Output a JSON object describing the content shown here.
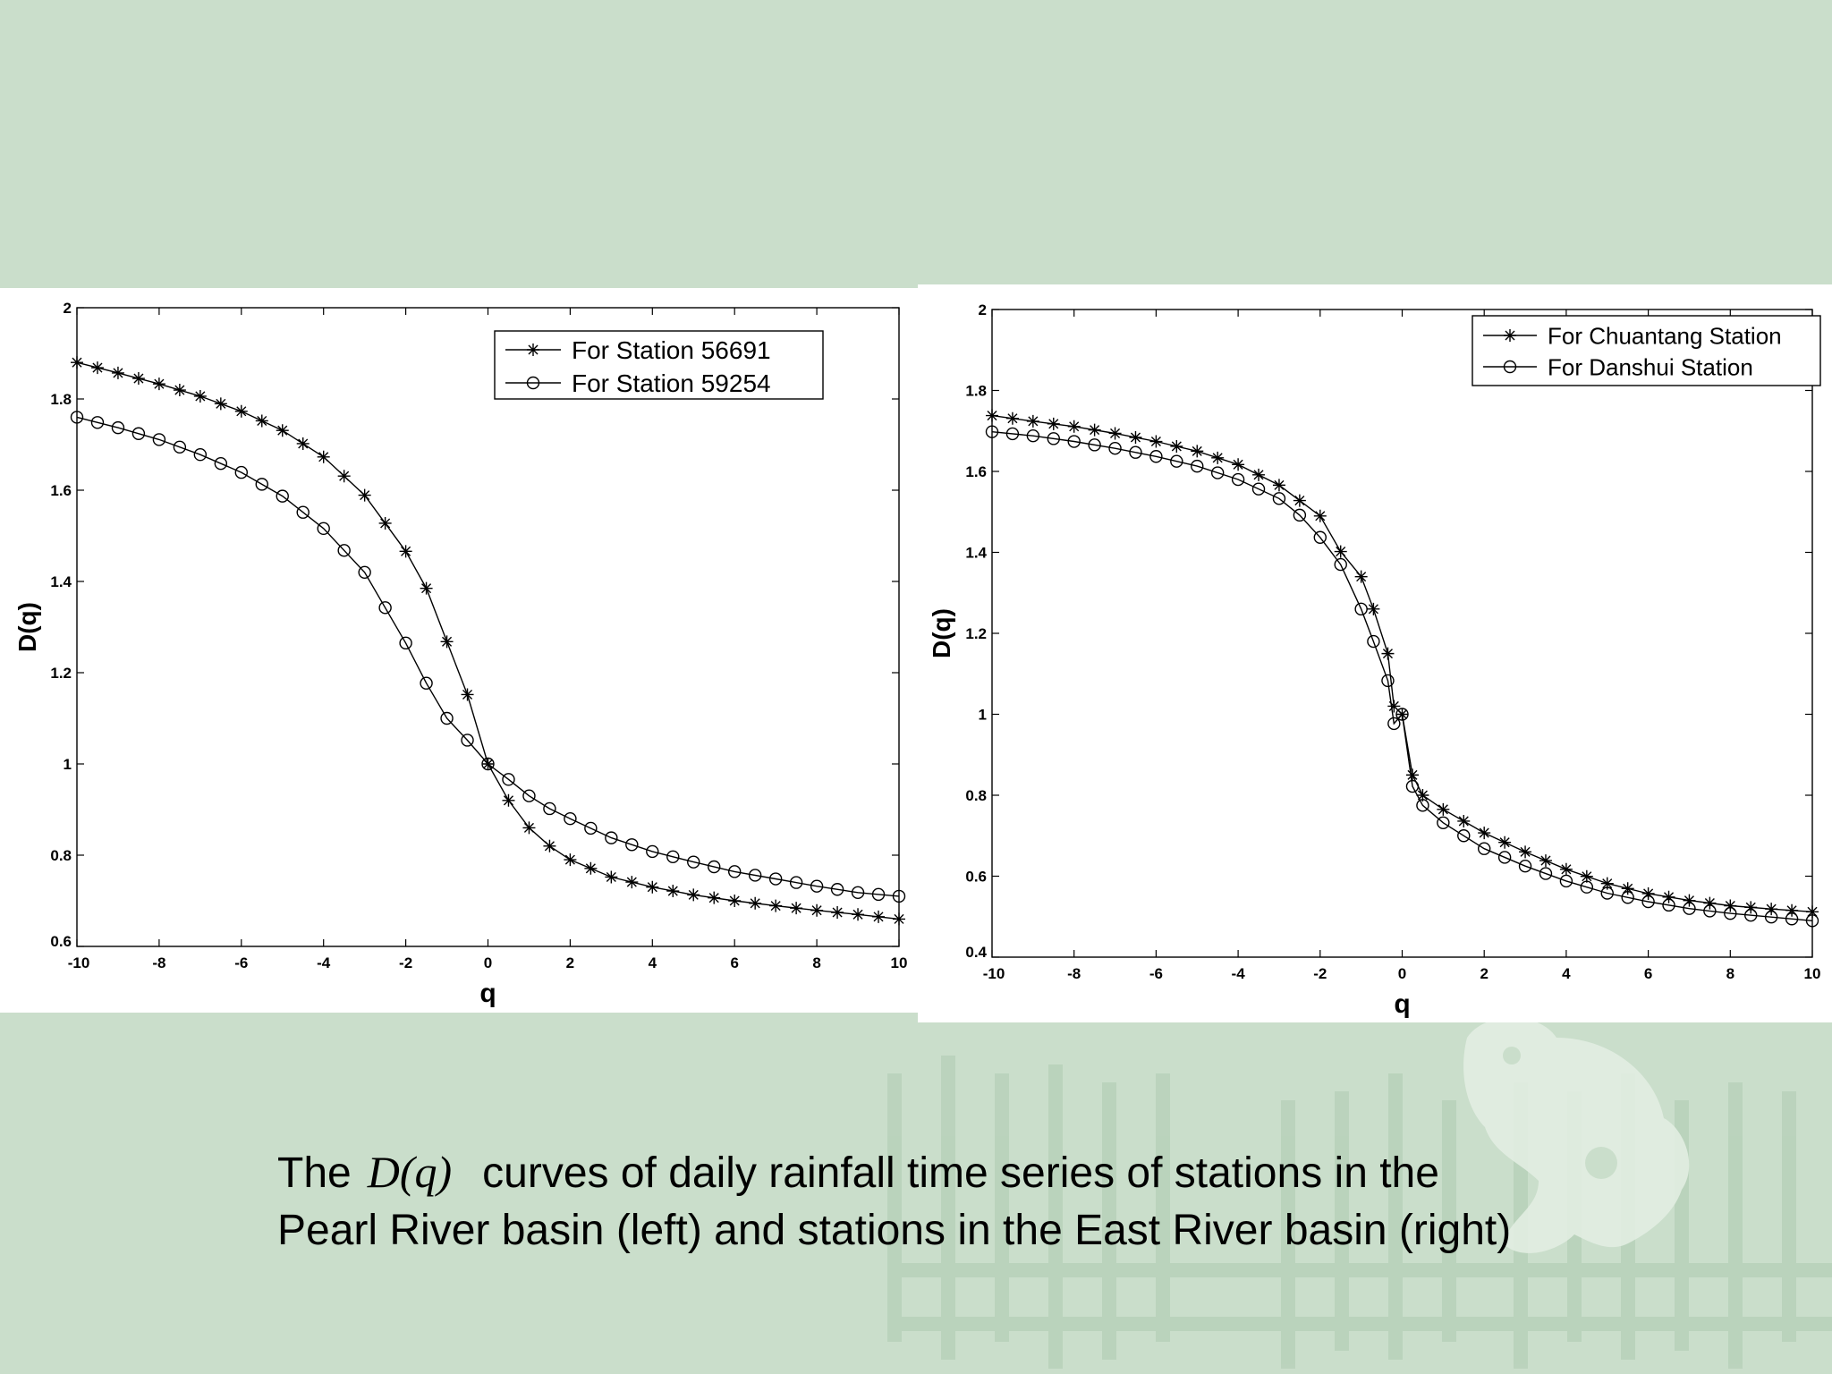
{
  "colors": {
    "background": "#cadecb",
    "panel": "#ffffff",
    "ink": "#000000"
  },
  "caption": {
    "line1_prefix": "The",
    "math": "D(q)",
    "line1_suffix": "curves of daily rainfall time series of stations in the",
    "line2": "Pearl River basin (left) and stations in the East River basin (right)"
  },
  "chart_data": [
    {
      "type": "line",
      "title": "",
      "xlabel": "q",
      "ylabel": "D(q)",
      "xlim": [
        -10,
        10
      ],
      "ylim": [
        0.6,
        2
      ],
      "xticks": [
        -10,
        -8,
        -6,
        -4,
        -2,
        0,
        2,
        4,
        6,
        8,
        10
      ],
      "yticks": [
        0.6,
        0.8,
        1,
        1.2,
        1.4,
        1.6,
        1.8,
        2
      ],
      "legend_position": "top-right",
      "series": [
        {
          "name": "For Station 56691",
          "marker": "star",
          "points": [
            [
              -10,
              1.88
            ],
            [
              -9,
              1.857
            ],
            [
              -8,
              1.833
            ],
            [
              -7,
              1.806
            ],
            [
              -6,
              1.773
            ],
            [
              -5,
              1.731
            ],
            [
              -4,
              1.673
            ],
            [
              -3,
              1.589
            ],
            [
              -2,
              1.466
            ],
            [
              -1.5,
              1.385
            ],
            [
              -1,
              1.268
            ],
            [
              -0.5,
              1.152
            ],
            [
              0,
              1.0
            ],
            [
              0.5,
              0.92
            ],
            [
              1,
              0.86
            ],
            [
              1.5,
              0.82
            ],
            [
              2,
              0.79
            ],
            [
              3,
              0.752
            ],
            [
              4,
              0.73
            ],
            [
              5,
              0.713
            ],
            [
              6,
              0.7
            ],
            [
              7,
              0.689
            ],
            [
              8,
              0.679
            ],
            [
              9,
              0.67
            ],
            [
              10,
              0.66
            ]
          ]
        },
        {
          "name": "For Station 59254",
          "marker": "circle",
          "points": [
            [
              -10,
              1.76
            ],
            [
              -9,
              1.737
            ],
            [
              -8,
              1.711
            ],
            [
              -7,
              1.678
            ],
            [
              -6,
              1.639
            ],
            [
              -5,
              1.587
            ],
            [
              -4,
              1.516
            ],
            [
              -3,
              1.42
            ],
            [
              -2,
              1.265
            ],
            [
              -1.5,
              1.177
            ],
            [
              -1,
              1.1
            ],
            [
              -0.5,
              1.052
            ],
            [
              0,
              1.0
            ],
            [
              0.5,
              0.966
            ],
            [
              1,
              0.93
            ],
            [
              1.5,
              0.902
            ],
            [
              2,
              0.88
            ],
            [
              3,
              0.838
            ],
            [
              4,
              0.808
            ],
            [
              5,
              0.785
            ],
            [
              6,
              0.764
            ],
            [
              7,
              0.748
            ],
            [
              8,
              0.732
            ],
            [
              9,
              0.718
            ],
            [
              10,
              0.71
            ]
          ]
        }
      ]
    },
    {
      "type": "line",
      "title": "",
      "xlabel": "q",
      "ylabel": "D(q)",
      "xlim": [
        -10,
        10
      ],
      "ylim": [
        0.4,
        2
      ],
      "xticks": [
        -10,
        -8,
        -6,
        -4,
        -2,
        0,
        2,
        4,
        6,
        8,
        10
      ],
      "yticks": [
        0.4,
        0.6,
        0.8,
        1,
        1.2,
        1.4,
        1.6,
        1.8,
        2
      ],
      "legend_position": "top-right",
      "series": [
        {
          "name": "For Chuantang Station",
          "marker": "star",
          "points": [
            [
              -10,
              1.738
            ],
            [
              -9,
              1.724
            ],
            [
              -8,
              1.711
            ],
            [
              -7,
              1.694
            ],
            [
              -6,
              1.674
            ],
            [
              -5,
              1.65
            ],
            [
              -4,
              1.617
            ],
            [
              -3,
              1.566
            ],
            [
              -2.5,
              1.528
            ],
            [
              -2,
              1.49
            ],
            [
              -1.5,
              1.402
            ],
            [
              -1,
              1.34
            ],
            [
              -0.7,
              1.26
            ],
            [
              -0.35,
              1.15
            ],
            [
              -0.2,
              1.02
            ],
            [
              0,
              1.0
            ],
            [
              0.25,
              0.85
            ],
            [
              0.5,
              0.8
            ],
            [
              1,
              0.765
            ],
            [
              2,
              0.707
            ],
            [
              3,
              0.66
            ],
            [
              4,
              0.617
            ],
            [
              5,
              0.582
            ],
            [
              6,
              0.557
            ],
            [
              7,
              0.54
            ],
            [
              8,
              0.527
            ],
            [
              9,
              0.519
            ],
            [
              10,
              0.512
            ]
          ]
        },
        {
          "name": "For Danshui Station",
          "marker": "circle",
          "points": [
            [
              -10,
              1.698
            ],
            [
              -9,
              1.688
            ],
            [
              -8,
              1.674
            ],
            [
              -7,
              1.657
            ],
            [
              -6,
              1.637
            ],
            [
              -5,
              1.613
            ],
            [
              -4,
              1.58
            ],
            [
              -3,
              1.533
            ],
            [
              -2.5,
              1.492
            ],
            [
              -2,
              1.437
            ],
            [
              -1.5,
              1.37
            ],
            [
              -1,
              1.26
            ],
            [
              -0.7,
              1.18
            ],
            [
              -0.35,
              1.083
            ],
            [
              -0.2,
              0.977
            ],
            [
              0,
              1.0
            ],
            [
              0.25,
              0.822
            ],
            [
              0.5,
              0.775
            ],
            [
              1,
              0.732
            ],
            [
              2,
              0.668
            ],
            [
              3,
              0.625
            ],
            [
              4,
              0.588
            ],
            [
              5,
              0.558
            ],
            [
              6,
              0.537
            ],
            [
              7,
              0.52
            ],
            [
              8,
              0.508
            ],
            [
              9,
              0.499
            ],
            [
              10,
              0.49
            ]
          ]
        }
      ]
    }
  ]
}
